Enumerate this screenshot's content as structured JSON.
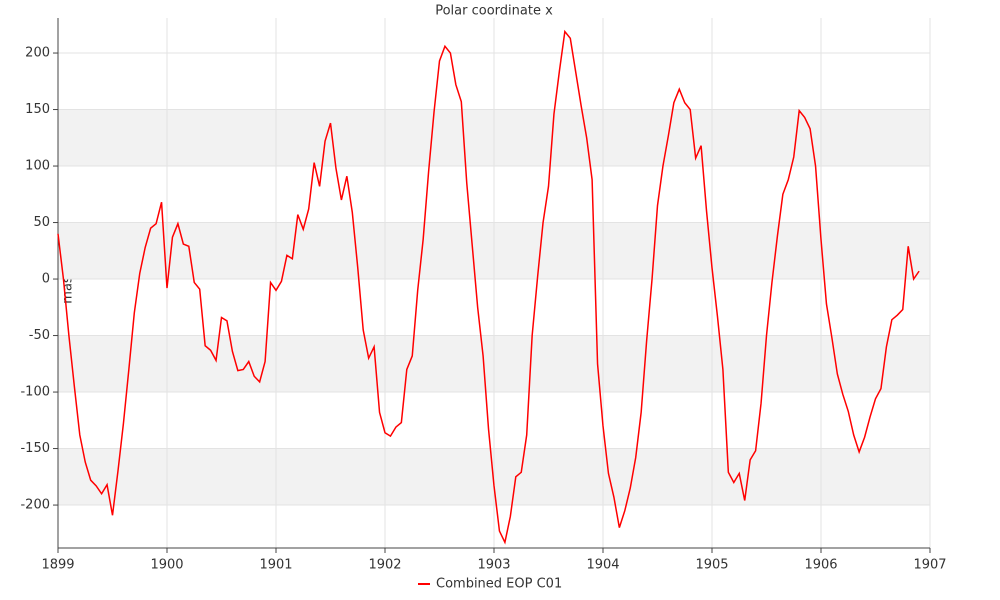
{
  "chart_data": {
    "type": "line",
    "title": "Polar coordinate x",
    "y_label": "mas",
    "x": [
      1899.0,
      1899.05,
      1899.1,
      1899.15,
      1899.2,
      1899.25,
      1899.3,
      1899.35,
      1899.4,
      1899.45,
      1899.5,
      1899.55,
      1899.6,
      1899.65,
      1899.7,
      1899.75,
      1899.8,
      1899.85,
      1899.9,
      1899.95,
      1900.0,
      1900.05,
      1900.1,
      1900.15,
      1900.2,
      1900.25,
      1900.3,
      1900.35,
      1900.4,
      1900.45,
      1900.5,
      1900.55,
      1900.6,
      1900.65,
      1900.7,
      1900.75,
      1900.8,
      1900.85,
      1900.9,
      1900.95,
      1901.0,
      1901.05,
      1901.1,
      1901.15,
      1901.2,
      1901.25,
      1901.3,
      1901.35,
      1901.4,
      1901.45,
      1901.5,
      1901.55,
      1901.6,
      1901.65,
      1901.7,
      1901.75,
      1901.8,
      1901.85,
      1901.9,
      1901.95,
      1902.0,
      1902.05,
      1902.1,
      1902.15,
      1902.2,
      1902.25,
      1902.3,
      1902.35,
      1902.4,
      1902.45,
      1902.5,
      1902.55,
      1902.6,
      1902.65,
      1902.7,
      1902.75,
      1902.8,
      1902.85,
      1902.9,
      1902.95,
      1903.0,
      1903.05,
      1903.1,
      1903.15,
      1903.2,
      1903.25,
      1903.3,
      1903.35,
      1903.4,
      1903.45,
      1903.5,
      1903.55,
      1903.6,
      1903.65,
      1903.7,
      1903.75,
      1903.8,
      1903.85,
      1903.9,
      1903.95,
      1904.0,
      1904.05,
      1904.1,
      1904.15,
      1904.2,
      1904.25,
      1904.3,
      1904.35,
      1904.4,
      1904.45,
      1904.5,
      1904.55,
      1904.6,
      1904.65,
      1904.7,
      1904.75,
      1904.8,
      1904.85,
      1904.9,
      1904.95,
      1905.0,
      1905.05,
      1905.1,
      1905.15,
      1905.2,
      1905.25,
      1905.3,
      1905.35,
      1905.4,
      1905.45,
      1905.5,
      1905.55,
      1905.6,
      1905.65,
      1905.7,
      1905.75,
      1905.8,
      1905.85,
      1905.9,
      1905.95,
      1906.0,
      1906.05,
      1906.1,
      1906.15,
      1906.2,
      1906.25,
      1906.3,
      1906.35,
      1906.4,
      1906.45,
      1906.5,
      1906.55,
      1906.6,
      1906.65,
      1906.7,
      1906.75,
      1906.8,
      1906.85,
      1906.9
    ],
    "series": [
      {
        "name": "Combined EOP C01",
        "color": "#ff0000",
        "values": [
          40,
          0,
          -50,
          -95,
          -138,
          -162,
          -178,
          -183,
          -190,
          -182,
          -209,
          -170,
          -128,
          -80,
          -30,
          5,
          28,
          45,
          49,
          68,
          -8,
          37,
          49,
          31,
          29,
          -3,
          -9,
          -59,
          -63,
          -72,
          -34,
          -37,
          -64,
          -81,
          -80,
          -73,
          -86,
          -91,
          -73,
          -3,
          -10,
          -2,
          21,
          18,
          57,
          44,
          62,
          103,
          82,
          122,
          138,
          98,
          70,
          91,
          59,
          10,
          -45,
          -70,
          -60,
          -118,
          -136,
          -139,
          -131,
          -127,
          -80,
          -68,
          -10,
          35,
          95,
          148,
          193,
          206,
          200,
          172,
          157,
          85,
          30,
          -25,
          -68,
          -133,
          -183,
          -223,
          -233,
          -210,
          -175,
          -171,
          -138,
          -50,
          2,
          50,
          82,
          146,
          184,
          219,
          213,
          183,
          153,
          125,
          88,
          -75,
          -130,
          -172,
          -193,
          -220,
          -205,
          -185,
          -158,
          -118,
          -55,
          0,
          65,
          100,
          127,
          156,
          168,
          156,
          150,
          107,
          118,
          60,
          10,
          -33,
          -80,
          -171,
          -180,
          -172,
          -196,
          -160,
          -152,
          -110,
          -50,
          -3,
          38,
          75,
          88,
          108,
          149,
          143,
          133,
          100,
          35,
          -22,
          -52,
          -84,
          -102,
          -117,
          -138,
          -153,
          -140,
          -122,
          -106,
          -97,
          -60,
          -36,
          -32,
          -27,
          29,
          0,
          7
        ]
      }
    ],
    "xlim": [
      1899,
      1907
    ],
    "xticks": [
      1899,
      1900,
      1901,
      1902,
      1903,
      1904,
      1905,
      1906,
      1907
    ],
    "ylim": [
      -238,
      231
    ],
    "yticks": [
      -200,
      -150,
      -100,
      -50,
      0,
      50,
      100,
      150,
      200
    ],
    "grid": true,
    "legend": "bottom"
  }
}
